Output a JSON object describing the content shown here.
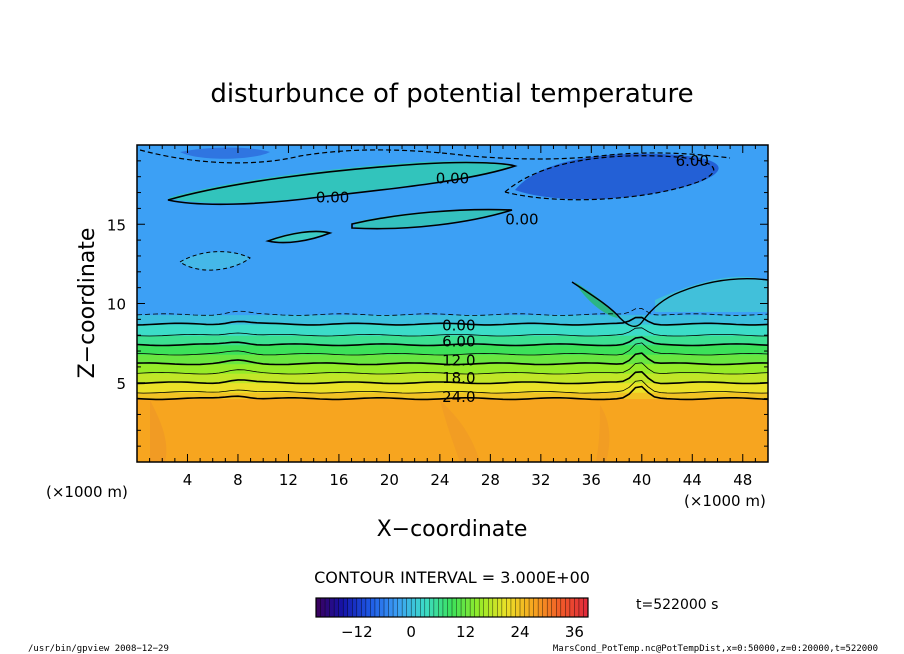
{
  "chart_data": {
    "type": "heatmap",
    "title": "disturbunce of potential temperature",
    "xlabel": "X−coordinate",
    "ylabel": "Z−coordinate",
    "x_unit": "(×1000 m)",
    "y_unit": "(×1000 m)",
    "xlim": [
      0,
      50
    ],
    "ylim": [
      0,
      20
    ],
    "x_ticks": [
      "4",
      "8",
      "12",
      "16",
      "20",
      "24",
      "28",
      "32",
      "36",
      "40",
      "44",
      "48"
    ],
    "y_ticks": [
      "5",
      "10",
      "15"
    ],
    "contour_interval": "CONTOUR INTERVAL = 3.000E+00",
    "colorbar": {
      "ticks": [
        "−12",
        "0",
        "12",
        "24",
        "36"
      ],
      "range": [
        -21,
        39
      ]
    },
    "time_label": "t=522000 s",
    "contour_labels": [
      {
        "text": "0.00",
        "x": 15.5,
        "y": 16.7
      },
      {
        "text": "0.00",
        "x": 25.0,
        "y": 17.9
      },
      {
        "text": "0.00",
        "x": 30.5,
        "y": 15.3
      },
      {
        "text": "6.00",
        "x": 44.0,
        "y": 19.0
      },
      {
        "text": "0.00",
        "x": 25.5,
        "y": 8.6
      },
      {
        "text": "6.00",
        "x": 25.5,
        "y": 7.6
      },
      {
        "text": "12.0",
        "x": 25.5,
        "y": 6.4
      },
      {
        "text": "18.0",
        "x": 25.5,
        "y": 5.3
      },
      {
        "text": "24.0",
        "x": 25.5,
        "y": 4.1
      }
    ],
    "bands": [
      {
        "z_from": 0.0,
        "z_to": 4.0,
        "value": 27
      },
      {
        "z_from": 4.0,
        "z_to": 4.4,
        "value": 24
      },
      {
        "z_from": 4.4,
        "z_to": 5.0,
        "value": 21
      },
      {
        "z_from": 5.0,
        "z_to": 5.6,
        "value": 18
      },
      {
        "z_from": 5.6,
        "z_to": 6.2,
        "value": 15
      },
      {
        "z_from": 6.2,
        "z_to": 6.8,
        "value": 12
      },
      {
        "z_from": 6.8,
        "z_to": 7.4,
        "value": 9
      },
      {
        "z_from": 7.4,
        "z_to": 8.0,
        "value": 6
      },
      {
        "z_from": 8.0,
        "z_to": 8.7,
        "value": 3
      },
      {
        "z_from": 8.7,
        "z_to": 9.3,
        "value": 0
      },
      {
        "z_from": 9.3,
        "z_to": 20.0,
        "value": -3
      }
    ]
  },
  "footer": {
    "left": "/usr/bin/gpview  2008−12−29",
    "right": "MarsCond_PotTemp.nc@PotTempDist,x=0:50000,z=0:20000,t=522000"
  },
  "colors": {
    "orange": "#f7a51f",
    "blue": "#3f9ff0",
    "dark_blue": "#1f50c8"
  }
}
